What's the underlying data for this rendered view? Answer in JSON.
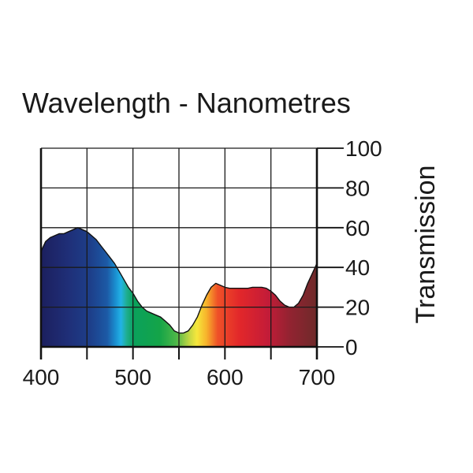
{
  "chart_data": {
    "type": "area",
    "title": "Wavelength - Nanometres",
    "xlabel": "",
    "ylabel": "Transmission",
    "xlim": [
      400,
      700
    ],
    "ylim": [
      0,
      100
    ],
    "xticks": [
      400,
      500,
      600,
      700
    ],
    "yticks": [
      0,
      20,
      40,
      60,
      80,
      100
    ],
    "x_gridlines": [
      400,
      450,
      500,
      550,
      600,
      650,
      700
    ],
    "grid": true,
    "fill": "visible-spectrum gradient",
    "series": [
      {
        "name": "Transmission",
        "x": [
          400,
          405,
          410,
          415,
          420,
          425,
          430,
          435,
          440,
          445,
          450,
          455,
          460,
          465,
          470,
          475,
          480,
          485,
          490,
          495,
          500,
          505,
          510,
          515,
          520,
          525,
          530,
          535,
          540,
          545,
          550,
          555,
          560,
          565,
          570,
          575,
          580,
          585,
          590,
          595,
          600,
          605,
          610,
          615,
          620,
          625,
          630,
          635,
          640,
          645,
          650,
          655,
          660,
          665,
          670,
          675,
          680,
          685,
          690,
          695,
          700
        ],
        "y": [
          48,
          53,
          55,
          56,
          57,
          57,
          58,
          59,
          60,
          59,
          58,
          56,
          54,
          51,
          48,
          45,
          42,
          38,
          34,
          30,
          27,
          23,
          20,
          18,
          17,
          16,
          15,
          13,
          11,
          8,
          7,
          7,
          8,
          11,
          15,
          21,
          26,
          30,
          32,
          31,
          30,
          29.5,
          29.5,
          29.5,
          29.5,
          29.5,
          30,
          30,
          30,
          29.5,
          28,
          26,
          23,
          21,
          20,
          20,
          22,
          26,
          32,
          37,
          42
        ]
      }
    ]
  }
}
